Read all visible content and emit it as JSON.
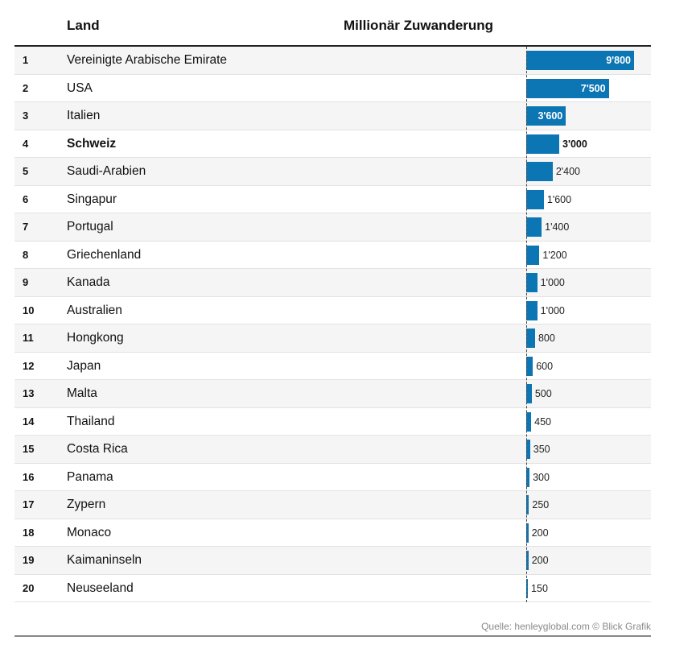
{
  "header": {
    "land_label": "Land",
    "value_label": "Millionär Zuwanderung"
  },
  "source": "Quelle: henleyglobal.com © Blick Grafik",
  "colors": {
    "bar": "#0c75b3"
  },
  "chart_data": {
    "type": "bar",
    "orientation": "horizontal",
    "title": "Millionär Zuwanderung",
    "xlabel": "Millionär Zuwanderung",
    "ylabel": "Land",
    "xlim": [
      0,
      9800
    ],
    "highlight": "Schweiz",
    "rows": [
      {
        "rank": "1",
        "country": "Vereinigte Arabische Emirate",
        "value": 9800,
        "label": "9'800"
      },
      {
        "rank": "2",
        "country": "USA",
        "value": 7500,
        "label": "7'500"
      },
      {
        "rank": "3",
        "country": "Italien",
        "value": 3600,
        "label": "3'600"
      },
      {
        "rank": "4",
        "country": "Schweiz",
        "value": 3000,
        "label": "3'000"
      },
      {
        "rank": "5",
        "country": "Saudi-Arabien",
        "value": 2400,
        "label": "2'400"
      },
      {
        "rank": "6",
        "country": "Singapur",
        "value": 1600,
        "label": "1'600"
      },
      {
        "rank": "7",
        "country": "Portugal",
        "value": 1400,
        "label": "1'400"
      },
      {
        "rank": "8",
        "country": "Griechenland",
        "value": 1200,
        "label": "1'200"
      },
      {
        "rank": "9",
        "country": "Kanada",
        "value": 1000,
        "label": "1'000"
      },
      {
        "rank": "10",
        "country": "Australien",
        "value": 1000,
        "label": "1'000"
      },
      {
        "rank": "11",
        "country": "Hongkong",
        "value": 800,
        "label": "800"
      },
      {
        "rank": "12",
        "country": "Japan",
        "value": 600,
        "label": "600"
      },
      {
        "rank": "13",
        "country": "Malta",
        "value": 500,
        "label": "500"
      },
      {
        "rank": "14",
        "country": "Thailand",
        "value": 450,
        "label": "450"
      },
      {
        "rank": "15",
        "country": "Costa Rica",
        "value": 350,
        "label": "350"
      },
      {
        "rank": "16",
        "country": "Panama",
        "value": 300,
        "label": "300"
      },
      {
        "rank": "17",
        "country": "Zypern",
        "value": 250,
        "label": "250"
      },
      {
        "rank": "18",
        "country": "Monaco",
        "value": 200,
        "label": "200"
      },
      {
        "rank": "19",
        "country": "Kaimaninseln",
        "value": 200,
        "label": "200"
      },
      {
        "rank": "20",
        "country": "Neuseeland",
        "value": 150,
        "label": "150"
      }
    ]
  }
}
